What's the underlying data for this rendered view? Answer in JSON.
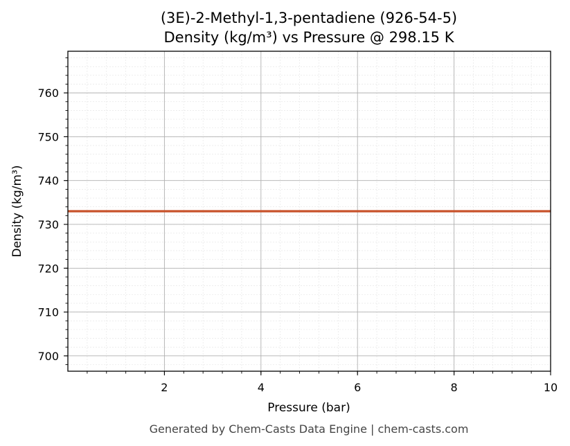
{
  "chart_data": {
    "type": "line",
    "title": "(3E)-2-Methyl-1,3-pentadiene (926-54-5)",
    "subtitle": "Density (kg/m³) vs Pressure @ 298.15 K",
    "xlabel": "Pressure (bar)",
    "ylabel": "Density (kg/m³)",
    "xlim": [
      0.0,
      10
    ],
    "ylim": [
      696.5,
      769.5
    ],
    "x_ticks": [
      2,
      4,
      6,
      8,
      10
    ],
    "y_ticks": [
      700,
      710,
      720,
      730,
      740,
      750,
      760
    ],
    "grid": true,
    "series": [
      {
        "color": "#c8522a",
        "x": [
          0.0,
          1,
          2,
          3,
          4,
          5,
          6,
          7,
          8,
          9,
          10
        ],
        "y": [
          733.0,
          733.0,
          733.0,
          733.0,
          733.0,
          733.0,
          733.0,
          733.0,
          733.0,
          733.0,
          733.0
        ]
      }
    ]
  },
  "footer": "Generated by Chem-Casts Data Engine | chem-casts.com"
}
